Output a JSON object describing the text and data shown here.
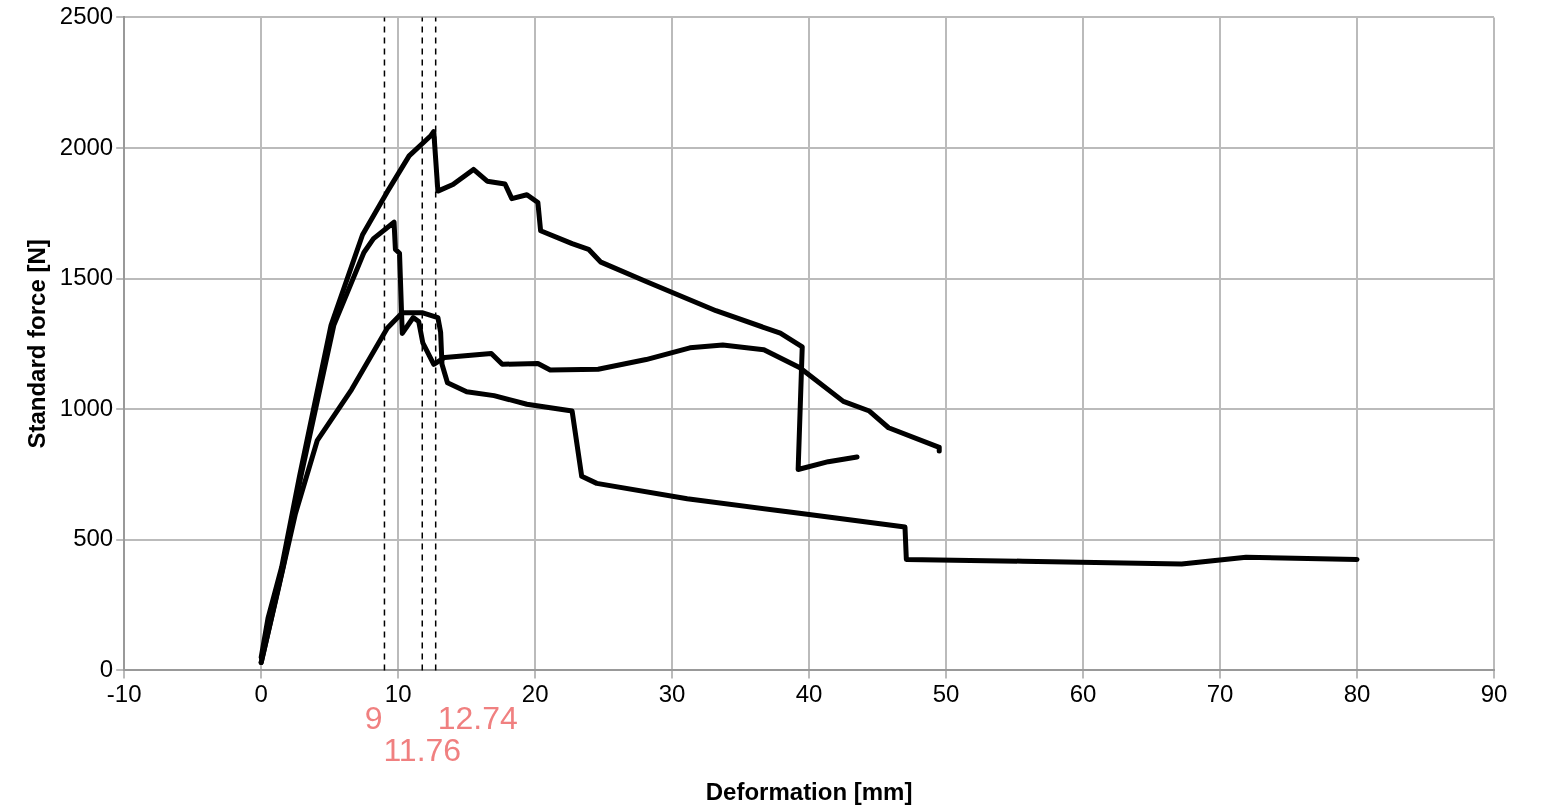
{
  "chart_data": {
    "type": "line",
    "xlabel": "Deformation [mm]",
    "ylabel": "Standard force [N]",
    "xlim": [
      -10,
      90
    ],
    "xticks": [
      -10,
      0,
      10,
      20,
      30,
      40,
      50,
      60,
      70,
      80,
      90
    ],
    "ylim": [
      0,
      2500
    ],
    "yticks": [
      0,
      500,
      1000,
      1500,
      2000,
      2500
    ],
    "grid": true,
    "legend": false,
    "marker": "none",
    "line_style": "solid",
    "series": [
      {
        "color": "#000000",
        "x": [
          0,
          0.5,
          1.5,
          2.8,
          5.1,
          7.4,
          9.2,
          10.8,
          12.4,
          12.6,
          12.9,
          14,
          15.5,
          16.5,
          17.8,
          18.3,
          19.4,
          20.2,
          20.4,
          22.7,
          23.9,
          24.8,
          28.1,
          33.2,
          37.9,
          39.5,
          39.2,
          41.4,
          43.5
        ],
        "values": [
          50,
          200,
          396,
          743,
          1321,
          1668,
          1832,
          1970,
          2048,
          2063,
          1835,
          1860,
          1918,
          1873,
          1862,
          1806,
          1821,
          1791,
          1683,
          1634,
          1612,
          1563,
          1489,
          1377,
          1291,
          1239,
          769,
          799,
          817
        ]
      },
      {
        "color": "#000000",
        "x": [
          0,
          1.6,
          2.9,
          5.3,
          7.5,
          8.2,
          9.7,
          9.8,
          10.1,
          10.3,
          11.1,
          11.5,
          11.8,
          12.6,
          13.4,
          16.8,
          17.6,
          20.2,
          21.1,
          24.6,
          28.1,
          31.3,
          33.7,
          36.7,
          39.3,
          42.5,
          44.4,
          45.8,
          49.5,
          49.5
        ],
        "values": [
          30,
          396,
          743,
          1321,
          1600,
          1653,
          1716,
          1612,
          1597,
          1290,
          1351,
          1336,
          1254,
          1172,
          1198,
          1213,
          1172,
          1175,
          1150,
          1153,
          1190,
          1235,
          1246,
          1228,
          1160,
          1030,
          993,
          929,
          854,
          840
        ]
      },
      {
        "color": "#000000",
        "x": [
          0,
          1.2,
          2.5,
          4.1,
          6.6,
          9.2,
          10.3,
          11.8,
          12.9,
          13.1,
          13.2,
          13.6,
          15,
          17,
          19.4,
          22.7,
          23.4,
          24.5,
          31.1,
          40,
          47,
          47.1,
          55.6,
          67.2,
          71.9,
          80
        ],
        "values": [
          30,
          300,
          600,
          881,
          1075,
          1310,
          1369,
          1369,
          1351,
          1295,
          1172,
          1101,
          1067,
          1052,
          1019,
          993,
          743,
          716,
          657,
          597,
          549,
          425,
          418,
          407,
          433,
          425
        ]
      }
    ],
    "ref_lines": [
      {
        "axis": "x",
        "value": 9,
        "label": "9",
        "line_style": "dashed"
      },
      {
        "axis": "x",
        "value": 11.76,
        "label": "11.76",
        "line_style": "dashed"
      },
      {
        "axis": "x",
        "value": 12.74,
        "label": "12.74",
        "line_style": "dashed"
      }
    ]
  }
}
